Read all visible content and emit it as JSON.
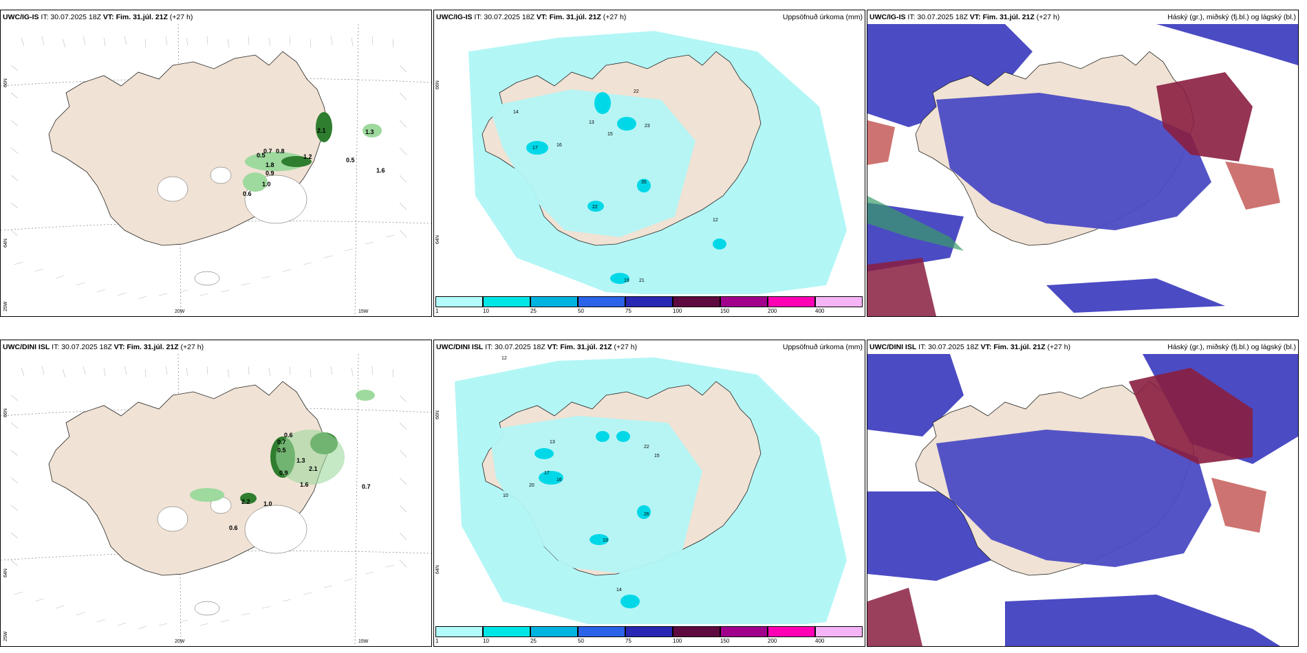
{
  "panels": {
    "p1": {
      "model": "UWC/IG-IS",
      "it": "IT: 30.07.2025 18Z",
      "vt_label": "VT:",
      "vt": "Fim. 31.júl. 21Z",
      "lead": "(+27 h)",
      "right": ""
    },
    "p2": {
      "model": "UWC/IG-IS",
      "it": "IT: 30.07.2025 18Z",
      "vt_label": "VT:",
      "vt": "Fim. 31.júl. 21Z",
      "lead": "(+27 h)",
      "right": "Uppsöfnuð úrkoma (mm)"
    },
    "p3": {
      "model": "UWC/IG-IS",
      "it": "IT: 30.07.2025 18Z",
      "vt_label": "VT:",
      "vt": "Fim. 31.júl. 21Z",
      "lead": "(+27 h)",
      "right": "Háský (gr.), miðský (fj.bl.) og lágský (bl.)"
    },
    "p4": {
      "model": "UWC/DINI ISL",
      "it": "IT: 30.07.2025 18Z",
      "vt_label": "VT:",
      "vt": "Fim. 31.júl. 21Z",
      "lead": "(+27 h)",
      "right": ""
    },
    "p5": {
      "model": "UWC/DINI ISL",
      "it": "IT: 30.07.2025 18Z",
      "vt_label": "VT:",
      "vt": "Fim. 31.júl. 21Z",
      "lead": "(+27 h)",
      "right": "Uppsöfnuð úrkoma (mm)"
    },
    "p6": {
      "model": "UWC/DINI ISL",
      "it": "IT: 30.07.2025 18Z",
      "vt_label": "VT:",
      "vt": "Fim. 31.júl. 21Z",
      "lead": "(+27 h)",
      "right": "Háský (gr.), miðský (fj.bl.) og lágský (bl.)"
    }
  },
  "axes": {
    "lat_66": "66N",
    "lat_64": "64N",
    "lon_25": "25W",
    "lon_20": "20W",
    "lon_15": "15W"
  },
  "colorbar": {
    "ticks": [
      "1",
      "10",
      "25",
      "50",
      "75",
      "100",
      "150",
      "200",
      "400"
    ],
    "colors": [
      "#b3fbfb",
      "#00e6e6",
      "#00b4e0",
      "#2b63e8",
      "#2828b4",
      "#5e0a40",
      "#a0008c",
      "#ff00b4",
      "#f5b4f5"
    ]
  },
  "colors": {
    "land": "#f0e2d4",
    "sea": "#ffffff",
    "precip_light": "#b3f6f6",
    "precip_mid": "#00e0e0",
    "high_cloud": "#8a1f40",
    "mid_cloud": "#4a4ab8",
    "low_cloud": "#4b4bc4"
  },
  "precip_values_top": {
    "v1": "0.5",
    "v2": "0.7",
    "v3": "0.8",
    "v4": "0.9",
    "v5": "0.6",
    "v6": "1.0",
    "v7": "1.2",
    "v8": "1.8",
    "v9": "1.3",
    "v10": "1.6",
    "v11": "2.1",
    "v12": "0.5"
  },
  "precip_values_bottom": {
    "v1": "0.6",
    "v2": "0.7",
    "v3": "0.5",
    "v4": "1.3",
    "v5": "0.9",
    "v6": "1.6",
    "v7": "2.1",
    "v8": "1.0",
    "v9": "0.7",
    "v10": "0.6",
    "v11": "2.2"
  },
  "accum_top": {
    "a1": "17",
    "a2": "22",
    "a3": "23",
    "a4": "15",
    "a5": "16",
    "a6": "35",
    "a7": "22",
    "a8": "13",
    "a9": "12",
    "a10": "19",
    "a11": "21",
    "a12": "14"
  },
  "accum_bottom": {
    "a1": "12",
    "a2": "22",
    "a3": "15",
    "a4": "17",
    "a5": "20",
    "a6": "26",
    "a7": "19",
    "a8": "14",
    "a9": "16",
    "a10": "10",
    "a11": "13"
  }
}
